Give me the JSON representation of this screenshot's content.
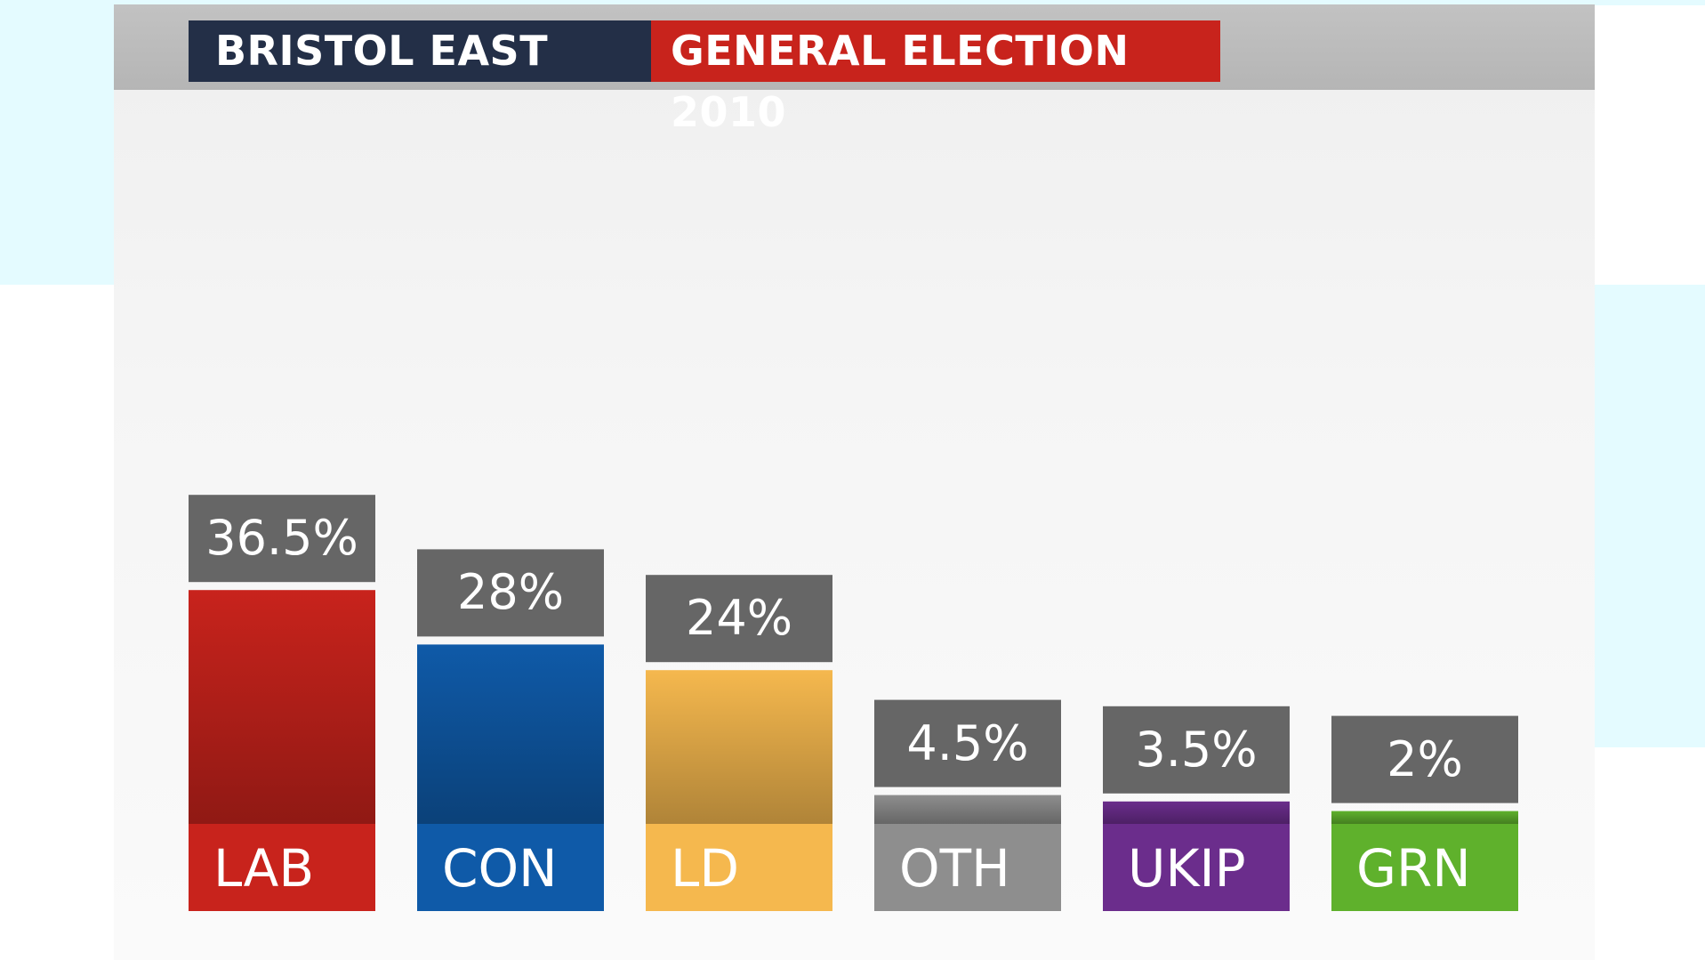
{
  "header": {
    "constituency": "BRISTOL EAST",
    "election": "GENERAL ELECTION 2010"
  },
  "chart_data": {
    "type": "bar",
    "title": "BRISTOL EAST GENERAL ELECTION 2010",
    "categories": [
      "LAB",
      "CON",
      "LD",
      "OTH",
      "UKIP",
      "GRN"
    ],
    "values": [
      36.5,
      28,
      24,
      4.5,
      3.5,
      2
    ],
    "value_labels": [
      "36.5%",
      "28%",
      "24%",
      "4.5%",
      "3.5%",
      "2%"
    ],
    "unit": "%",
    "colors": [
      "#c8231c",
      "#0f5aa8",
      "#f5b84e",
      "#8e8e8e",
      "#6b2d8c",
      "#5fb12c"
    ],
    "label_box_color": "#666666",
    "grid": false,
    "legend": "none"
  }
}
